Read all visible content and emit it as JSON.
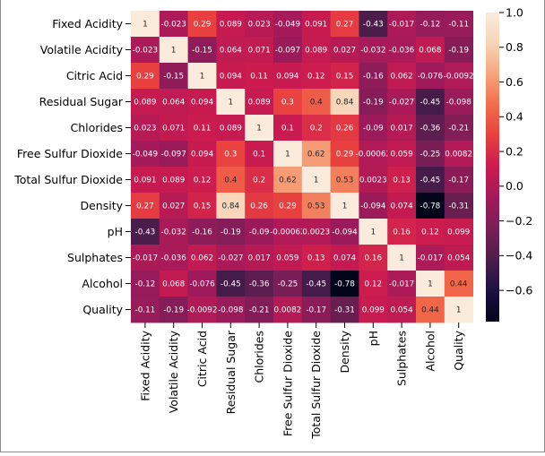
{
  "chart_data": {
    "type": "heatmap",
    "title": "",
    "xlabel": "",
    "ylabel": "",
    "labels": [
      "Fixed Acidity",
      "Volatile Acidity",
      "Citric Acid",
      "Residual Sugar",
      "Chlorides",
      "Free Sulfur Dioxide",
      "Total Sulfur Dioxide",
      "Density",
      "pH",
      "Sulphates",
      "Alcohol",
      "Quality"
    ],
    "matrix": [
      [
        1,
        -0.023,
        0.29,
        0.089,
        0.023,
        -0.049,
        0.091,
        0.27,
        -0.43,
        -0.017,
        -0.12,
        -0.11
      ],
      [
        -0.023,
        1,
        -0.15,
        0.064,
        0.071,
        -0.097,
        0.089,
        0.027,
        -0.032,
        -0.036,
        0.068,
        -0.19
      ],
      [
        0.29,
        -0.15,
        1,
        0.094,
        0.11,
        0.094,
        0.12,
        0.15,
        -0.16,
        0.062,
        -0.076,
        -0.0092
      ],
      [
        0.089,
        0.064,
        0.094,
        1,
        0.089,
        0.3,
        0.4,
        0.84,
        -0.19,
        -0.027,
        -0.45,
        -0.098
      ],
      [
        0.023,
        0.071,
        0.11,
        0.089,
        1,
        0.1,
        0.2,
        0.26,
        -0.09,
        0.017,
        -0.36,
        -0.21
      ],
      [
        -0.049,
        -0.097,
        0.094,
        0.3,
        0.1,
        1,
        0.62,
        0.29,
        -0.00062,
        0.059,
        -0.25,
        0.0082
      ],
      [
        0.091,
        0.089,
        0.12,
        0.4,
        0.2,
        0.62,
        1,
        0.53,
        0.0023,
        0.13,
        -0.45,
        -0.17
      ],
      [
        0.27,
        0.027,
        0.15,
        0.84,
        0.26,
        0.29,
        0.53,
        1,
        -0.094,
        0.074,
        -0.78,
        -0.31
      ],
      [
        -0.43,
        -0.032,
        -0.16,
        -0.19,
        -0.09,
        -0.00062,
        0.0023,
        -0.094,
        1,
        0.16,
        0.12,
        0.099
      ],
      [
        -0.017,
        -0.036,
        0.062,
        -0.027,
        0.017,
        0.059,
        0.13,
        0.074,
        0.16,
        1,
        -0.017,
        0.054
      ],
      [
        -0.12,
        0.068,
        -0.076,
        -0.45,
        -0.36,
        -0.25,
        -0.45,
        -0.78,
        0.12,
        -0.017,
        1,
        0.44
      ],
      [
        -0.11,
        -0.19,
        -0.0092,
        -0.098,
        -0.21,
        0.0082,
        -0.17,
        -0.31,
        0.099,
        0.054,
        0.44,
        1
      ]
    ],
    "annotations": [
      [
        "1",
        "-0.023",
        "0.29",
        "0.089",
        "0.023",
        "-0.049",
        "0.091",
        "0.27",
        "-0.43",
        "-0.017",
        "-0.12",
        "-0.11"
      ],
      [
        "-0.023",
        "1",
        "-0.15",
        "0.064",
        "0.071",
        "-0.097",
        "0.089",
        "0.027",
        "-0.032",
        "-0.036",
        "0.068",
        "-0.19"
      ],
      [
        "0.29",
        "-0.15",
        "1",
        "0.094",
        "0.11",
        "0.094",
        "0.12",
        "0.15",
        "-0.16",
        "0.062",
        "-0.076",
        "-0.0092"
      ],
      [
        "0.089",
        "0.064",
        "0.094",
        "1",
        "0.089",
        "0.3",
        "0.4",
        "0.84",
        "-0.19",
        "-0.027",
        "-0.45",
        "-0.098"
      ],
      [
        "0.023",
        "0.071",
        "0.11",
        "0.089",
        "1",
        "0.1",
        "0.2",
        "0.26",
        "-0.09",
        "0.017",
        "-0.36",
        "-0.21"
      ],
      [
        "-0.049",
        "-0.097",
        "0.094",
        "0.3",
        "0.1",
        "1",
        "0.62",
        "0.29",
        "-0.00062",
        "0.059",
        "-0.25",
        "0.0082"
      ],
      [
        "0.091",
        "0.089",
        "0.12",
        "0.4",
        "0.2",
        "0.62",
        "1",
        "0.53",
        "0.0023",
        "0.13",
        "-0.45",
        "-0.17"
      ],
      [
        "0.27",
        "0.027",
        "0.15",
        "0.84",
        "0.26",
        "0.29",
        "0.53",
        "1",
        "-0.094",
        "0.074",
        "-0.78",
        "-0.31"
      ],
      [
        "-0.43",
        "-0.032",
        "-0.16",
        "-0.19",
        "-0.09",
        "-0.00062",
        "0.0023",
        "-0.094",
        "1",
        "0.16",
        "0.12",
        "0.099"
      ],
      [
        "-0.017",
        "-0.036",
        "0.062",
        "-0.027",
        "0.017",
        "0.059",
        "0.13",
        "0.074",
        "0.16",
        "1",
        "-0.017",
        "0.054"
      ],
      [
        "-0.12",
        "0.068",
        "-0.076",
        "-0.45",
        "-0.36",
        "-0.25",
        "-0.45",
        "-0.78",
        "0.12",
        "-0.017",
        "1",
        "0.44"
      ],
      [
        "-0.11",
        "-0.19",
        "-0.0092",
        "-0.098",
        "-0.21",
        "0.0082",
        "-0.17",
        "-0.31",
        "0.099",
        "0.054",
        "0.44",
        "1"
      ]
    ],
    "colormap": "rocket",
    "vmin": -0.78,
    "vmax": 1.0,
    "colorbar": {
      "ticks": [
        1.0,
        0.8,
        0.6,
        0.4,
        0.2,
        0.0,
        -0.2,
        -0.4,
        -0.6
      ],
      "tick_labels": [
        "1.0",
        "0.8",
        "0.6",
        "0.4",
        "0.2",
        "0.0",
        "−0.2",
        "−0.4",
        "−0.6"
      ],
      "placement": "right"
    },
    "colors": {
      "stops": [
        "#03051a",
        "#1c1044",
        "#4c1d4b",
        "#7a1e56",
        "#a11a5b",
        "#cb1b4f",
        "#e83f3f",
        "#f26c4b",
        "#f6a47c",
        "#f8d4b6",
        "#faebdd"
      ],
      "text_dark": "#262626",
      "text_light": "#ffffff"
    }
  }
}
